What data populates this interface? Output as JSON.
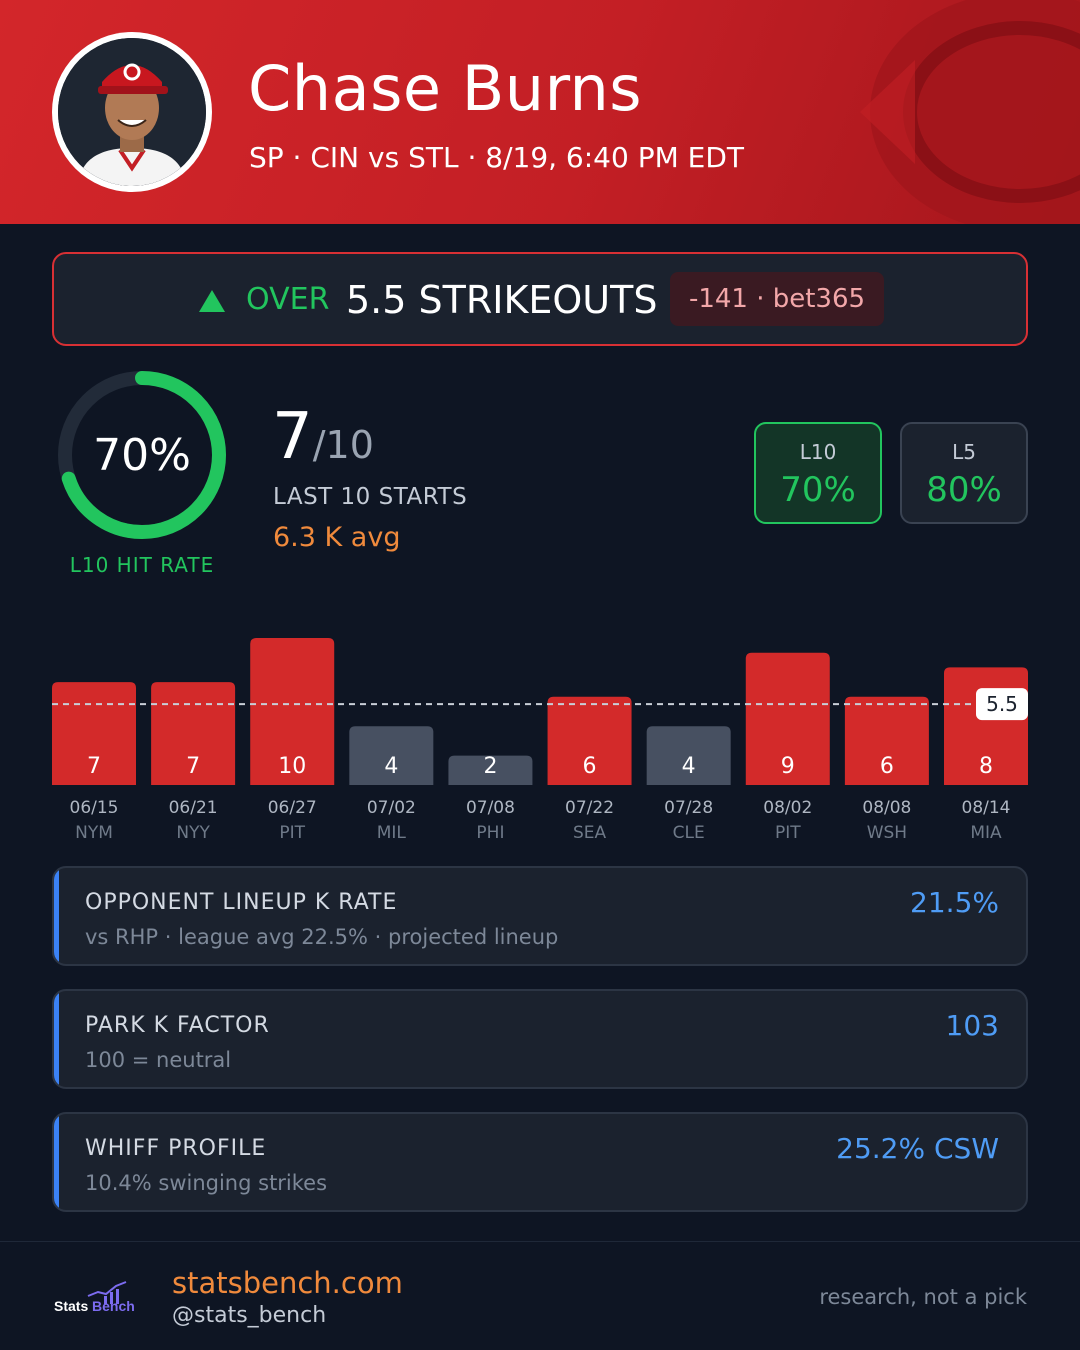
{
  "header": {
    "name": "Chase Burns",
    "subtitle": "SP · CIN vs STL · 8/19, 6:40 PM EDT",
    "team_color": "#c31f25"
  },
  "pick": {
    "direction": "OVER",
    "line": "5.5 STRIKEOUTS",
    "odds": "-141 · bet365",
    "icon": "triangle-up-icon"
  },
  "hit_rate": {
    "percent": "70%",
    "fraction": 0.7,
    "label": "L10 HIT RATE",
    "hits": "7",
    "of": "/10",
    "hits_label": "LAST 10 STARTS",
    "avg": "6.3 K avg"
  },
  "splits": [
    {
      "name": "L10",
      "value": "70%"
    },
    {
      "name": "L5",
      "value": "80%"
    }
  ],
  "chart_data": {
    "type": "bar",
    "line": 5.5,
    "line_label": "5.5",
    "hit_color": "#d32a2a",
    "miss_color": "#475061",
    "bars": [
      {
        "date": "06/15",
        "opp": "NYM",
        "k": 7
      },
      {
        "date": "06/21",
        "opp": "NYY",
        "k": 7
      },
      {
        "date": "06/27",
        "opp": "PIT",
        "k": 10
      },
      {
        "date": "07/02",
        "opp": "MIL",
        "k": 4
      },
      {
        "date": "07/08",
        "opp": "PHI",
        "k": 2
      },
      {
        "date": "07/22",
        "opp": "SEA",
        "k": 6
      },
      {
        "date": "07/28",
        "opp": "CLE",
        "k": 4
      },
      {
        "date": "08/02",
        "opp": "PIT",
        "k": 9
      },
      {
        "date": "08/08",
        "opp": "WSH",
        "k": 6
      },
      {
        "date": "08/14",
        "opp": "MIA",
        "k": 8
      }
    ]
  },
  "cards": [
    {
      "title": "OPPONENT LINEUP K RATE",
      "sub": "vs RHP · league avg 22.5% · projected lineup",
      "value": "21.5%"
    },
    {
      "title": "PARK K FACTOR",
      "sub": "100 = neutral",
      "value": "103"
    },
    {
      "title": "WHIFF PROFILE",
      "sub": "10.4% swinging strikes",
      "value": "25.2% CSW"
    }
  ],
  "footer": {
    "logo": "StatsBench",
    "site": "statsbench.com",
    "handle": "@stats_bench",
    "note": "research, not a pick"
  }
}
